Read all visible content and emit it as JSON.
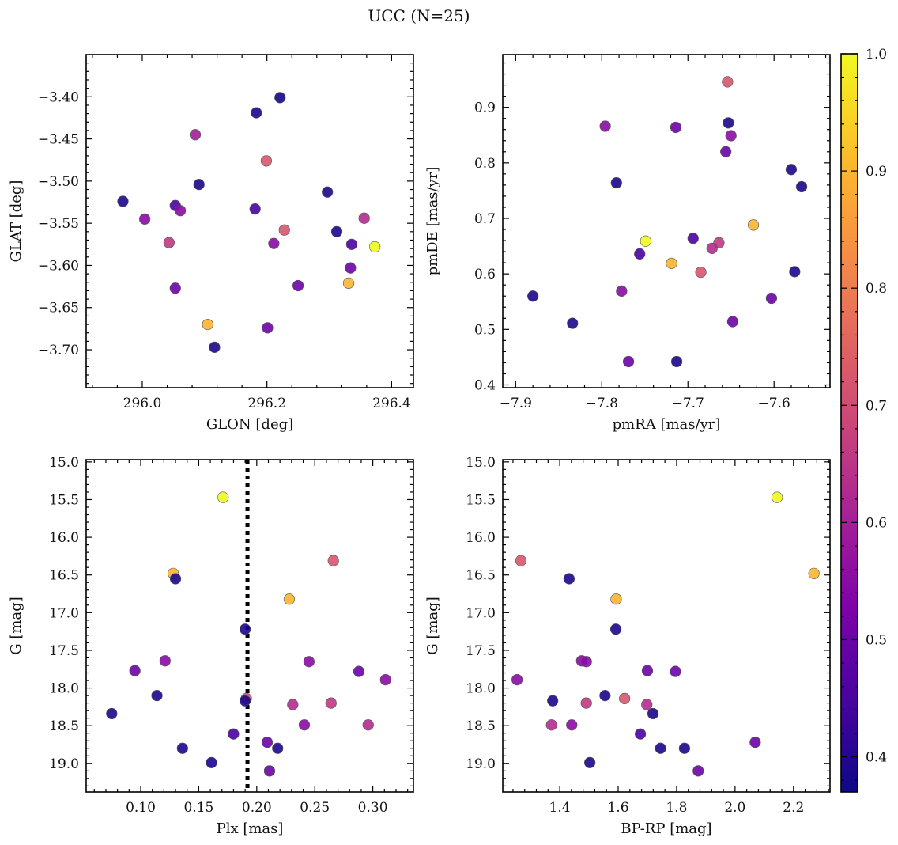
{
  "title": "UCC (N=25)",
  "colormap": "plasma",
  "colorbar": {
    "range": [
      0.37,
      1.0
    ],
    "ticks": [
      0.4,
      0.5,
      0.6,
      0.7,
      0.8,
      0.9,
      1.0
    ],
    "tick_labels": [
      "0.4",
      "0.5",
      "0.6",
      "0.7",
      "0.8",
      "0.9",
      "1.0"
    ]
  },
  "chart_data": [
    {
      "type": "scatter",
      "id": "glon-glat",
      "xlabel": "GLON [deg]",
      "ylabel": "GLAT [deg]",
      "xlim": [
        295.91,
        296.435
      ],
      "ylim": [
        -3.745,
        -3.35
      ],
      "xticks": [
        296.0,
        296.2,
        296.4
      ],
      "xtick_labels": [
        "296.0",
        "296.2",
        "296.4"
      ],
      "yticks": [
        -3.4,
        -3.45,
        -3.5,
        -3.55,
        -3.6,
        -3.65,
        -3.7
      ],
      "ytick_labels": [
        "−3.40",
        "−3.45",
        "−3.50",
        "−3.55",
        "−3.60",
        "−3.65",
        "−3.70"
      ],
      "points": [
        {
          "x": 296.221,
          "y": -3.401,
          "c": 0.38
        },
        {
          "x": 296.183,
          "y": -3.419,
          "c": 0.39
        },
        {
          "x": 296.085,
          "y": -3.445,
          "c": 0.6
        },
        {
          "x": 296.199,
          "y": -3.476,
          "c": 0.72
        },
        {
          "x": 296.091,
          "y": -3.504,
          "c": 0.39
        },
        {
          "x": 296.297,
          "y": -3.513,
          "c": 0.39
        },
        {
          "x": 295.969,
          "y": -3.524,
          "c": 0.39
        },
        {
          "x": 296.053,
          "y": -3.529,
          "c": 0.45
        },
        {
          "x": 296.181,
          "y": -3.533,
          "c": 0.45
        },
        {
          "x": 296.061,
          "y": -3.535,
          "c": 0.55
        },
        {
          "x": 296.004,
          "y": -3.545,
          "c": 0.55
        },
        {
          "x": 296.356,
          "y": -3.544,
          "c": 0.63
        },
        {
          "x": 296.228,
          "y": -3.558,
          "c": 0.72
        },
        {
          "x": 296.312,
          "y": -3.56,
          "c": 0.39
        },
        {
          "x": 296.043,
          "y": -3.573,
          "c": 0.66
        },
        {
          "x": 296.211,
          "y": -3.574,
          "c": 0.55
        },
        {
          "x": 296.336,
          "y": -3.575,
          "c": 0.45
        },
        {
          "x": 296.373,
          "y": -3.578,
          "c": 1.0
        },
        {
          "x": 296.334,
          "y": -3.603,
          "c": 0.5
        },
        {
          "x": 296.331,
          "y": -3.621,
          "c": 0.9
        },
        {
          "x": 296.25,
          "y": -3.624,
          "c": 0.5
        },
        {
          "x": 296.053,
          "y": -3.627,
          "c": 0.5
        },
        {
          "x": 296.105,
          "y": -3.67,
          "c": 0.9
        },
        {
          "x": 296.201,
          "y": -3.674,
          "c": 0.5
        },
        {
          "x": 296.116,
          "y": -3.697,
          "c": 0.39
        }
      ]
    },
    {
      "type": "scatter",
      "id": "pmra-pmde",
      "xlabel": "pmRA [mas/yr]",
      "ylabel": "pmDE [mas/yr]",
      "xlim": [
        -7.915,
        -7.535
      ],
      "ylim": [
        0.395,
        0.995
      ],
      "xticks": [
        -7.9,
        -7.8,
        -7.7,
        -7.6
      ],
      "xtick_labels": [
        "−7.9",
        "−7.8",
        "−7.7",
        "−7.6"
      ],
      "yticks": [
        0.4,
        0.5,
        0.6,
        0.7,
        0.8,
        0.9
      ],
      "ytick_labels": [
        "0.4",
        "0.5",
        "0.6",
        "0.7",
        "0.8",
        "0.9"
      ],
      "points": [
        {
          "x": -7.654,
          "y": 0.946,
          "c": 0.72
        },
        {
          "x": -7.653,
          "y": 0.872,
          "c": 0.39
        },
        {
          "x": -7.796,
          "y": 0.866,
          "c": 0.55
        },
        {
          "x": -7.714,
          "y": 0.864,
          "c": 0.5
        },
        {
          "x": -7.65,
          "y": 0.849,
          "c": 0.55
        },
        {
          "x": -7.656,
          "y": 0.82,
          "c": 0.5
        },
        {
          "x": -7.58,
          "y": 0.788,
          "c": 0.39
        },
        {
          "x": -7.783,
          "y": 0.764,
          "c": 0.39
        },
        {
          "x": -7.568,
          "y": 0.757,
          "c": 0.39
        },
        {
          "x": -7.624,
          "y": 0.688,
          "c": 0.9
        },
        {
          "x": -7.694,
          "y": 0.664,
          "c": 0.45
        },
        {
          "x": -7.749,
          "y": 0.659,
          "c": 1.0
        },
        {
          "x": -7.664,
          "y": 0.656,
          "c": 0.66
        },
        {
          "x": -7.672,
          "y": 0.646,
          "c": 0.63
        },
        {
          "x": -7.756,
          "y": 0.636,
          "c": 0.45
        },
        {
          "x": -7.719,
          "y": 0.619,
          "c": 0.9
        },
        {
          "x": -7.576,
          "y": 0.604,
          "c": 0.39
        },
        {
          "x": -7.685,
          "y": 0.603,
          "c": 0.72
        },
        {
          "x": -7.777,
          "y": 0.569,
          "c": 0.55
        },
        {
          "x": -7.88,
          "y": 0.56,
          "c": 0.39
        },
        {
          "x": -7.603,
          "y": 0.556,
          "c": 0.5
        },
        {
          "x": -7.648,
          "y": 0.514,
          "c": 0.5
        },
        {
          "x": -7.834,
          "y": 0.511,
          "c": 0.39
        },
        {
          "x": -7.769,
          "y": 0.442,
          "c": 0.5
        },
        {
          "x": -7.713,
          "y": 0.442,
          "c": 0.39
        }
      ]
    },
    {
      "type": "scatter",
      "id": "plx-g",
      "xlabel": "Plx [mas]",
      "ylabel": "G [mag]",
      "xlim": [
        0.053,
        0.335
      ],
      "ylim": [
        19.38,
        14.97
      ],
      "y_inverted": true,
      "vline": 0.192,
      "xticks": [
        0.1,
        0.15,
        0.2,
        0.25,
        0.3
      ],
      "xtick_labels": [
        "0.10",
        "0.15",
        "0.20",
        "0.25",
        "0.30"
      ],
      "yticks": [
        15.0,
        15.5,
        16.0,
        16.5,
        17.0,
        17.5,
        18.0,
        18.5,
        19.0
      ],
      "ytick_labels": [
        "15.0",
        "15.5",
        "16.0",
        "16.5",
        "17.0",
        "17.5",
        "18.0",
        "18.5",
        "19.0"
      ],
      "points": [
        {
          "x": 0.171,
          "y": 15.47,
          "c": 1.0
        },
        {
          "x": 0.266,
          "y": 16.31,
          "c": 0.72
        },
        {
          "x": 0.128,
          "y": 16.48,
          "c": 0.9
        },
        {
          "x": 0.13,
          "y": 16.55,
          "c": 0.39
        },
        {
          "x": 0.228,
          "y": 16.82,
          "c": 0.9
        },
        {
          "x": 0.19,
          "y": 17.22,
          "c": 0.39
        },
        {
          "x": 0.121,
          "y": 17.64,
          "c": 0.55
        },
        {
          "x": 0.245,
          "y": 17.65,
          "c": 0.55
        },
        {
          "x": 0.095,
          "y": 17.77,
          "c": 0.5
        },
        {
          "x": 0.288,
          "y": 17.78,
          "c": 0.5
        },
        {
          "x": 0.311,
          "y": 17.89,
          "c": 0.55
        },
        {
          "x": 0.114,
          "y": 18.1,
          "c": 0.39
        },
        {
          "x": 0.191,
          "y": 18.14,
          "c": 0.72
        },
        {
          "x": 0.19,
          "y": 18.17,
          "c": 0.39
        },
        {
          "x": 0.264,
          "y": 18.2,
          "c": 0.66
        },
        {
          "x": 0.231,
          "y": 18.22,
          "c": 0.63
        },
        {
          "x": 0.075,
          "y": 18.34,
          "c": 0.39
        },
        {
          "x": 0.241,
          "y": 18.49,
          "c": 0.55
        },
        {
          "x": 0.296,
          "y": 18.49,
          "c": 0.63
        },
        {
          "x": 0.18,
          "y": 18.61,
          "c": 0.45
        },
        {
          "x": 0.209,
          "y": 18.72,
          "c": 0.5
        },
        {
          "x": 0.136,
          "y": 18.8,
          "c": 0.39
        },
        {
          "x": 0.218,
          "y": 18.8,
          "c": 0.39
        },
        {
          "x": 0.161,
          "y": 18.99,
          "c": 0.39
        },
        {
          "x": 0.211,
          "y": 19.1,
          "c": 0.5
        }
      ]
    },
    {
      "type": "scatter",
      "id": "bprp-g",
      "xlabel": "BP-RP [mag]",
      "ylabel": "G [mag]",
      "xlim": [
        1.205,
        2.325
      ],
      "ylim": [
        19.38,
        14.97
      ],
      "y_inverted": true,
      "xticks": [
        1.4,
        1.6,
        1.8,
        2.0,
        2.2
      ],
      "xtick_labels": [
        "1.4",
        "1.6",
        "1.8",
        "2.0",
        "2.2"
      ],
      "yticks": [
        15.0,
        15.5,
        16.0,
        16.5,
        17.0,
        17.5,
        18.0,
        18.5,
        19.0
      ],
      "ytick_labels": [
        "15.0",
        "15.5",
        "16.0",
        "16.5",
        "17.0",
        "17.5",
        "18.0",
        "18.5",
        "19.0"
      ],
      "points": [
        {
          "x": 2.144,
          "y": 15.47,
          "c": 1.0
        },
        {
          "x": 1.267,
          "y": 16.31,
          "c": 0.72
        },
        {
          "x": 2.27,
          "y": 16.48,
          "c": 0.9
        },
        {
          "x": 1.432,
          "y": 16.55,
          "c": 0.39
        },
        {
          "x": 1.593,
          "y": 16.82,
          "c": 0.9
        },
        {
          "x": 1.592,
          "y": 17.22,
          "c": 0.39
        },
        {
          "x": 1.475,
          "y": 17.64,
          "c": 0.55
        },
        {
          "x": 1.491,
          "y": 17.65,
          "c": 0.55
        },
        {
          "x": 1.7,
          "y": 17.77,
          "c": 0.5
        },
        {
          "x": 1.796,
          "y": 17.78,
          "c": 0.5
        },
        {
          "x": 1.254,
          "y": 17.89,
          "c": 0.55
        },
        {
          "x": 1.555,
          "y": 18.1,
          "c": 0.39
        },
        {
          "x": 1.622,
          "y": 18.14,
          "c": 0.72
        },
        {
          "x": 1.376,
          "y": 18.17,
          "c": 0.39
        },
        {
          "x": 1.491,
          "y": 18.2,
          "c": 0.66
        },
        {
          "x": 1.698,
          "y": 18.22,
          "c": 0.63
        },
        {
          "x": 1.719,
          "y": 18.34,
          "c": 0.39
        },
        {
          "x": 1.441,
          "y": 18.49,
          "c": 0.55
        },
        {
          "x": 1.372,
          "y": 18.49,
          "c": 0.63
        },
        {
          "x": 1.676,
          "y": 18.61,
          "c": 0.45
        },
        {
          "x": 2.069,
          "y": 18.72,
          "c": 0.5
        },
        {
          "x": 1.745,
          "y": 18.8,
          "c": 0.39
        },
        {
          "x": 1.827,
          "y": 18.8,
          "c": 0.39
        },
        {
          "x": 1.503,
          "y": 18.99,
          "c": 0.39
        },
        {
          "x": 1.874,
          "y": 19.1,
          "c": 0.5
        }
      ]
    }
  ]
}
